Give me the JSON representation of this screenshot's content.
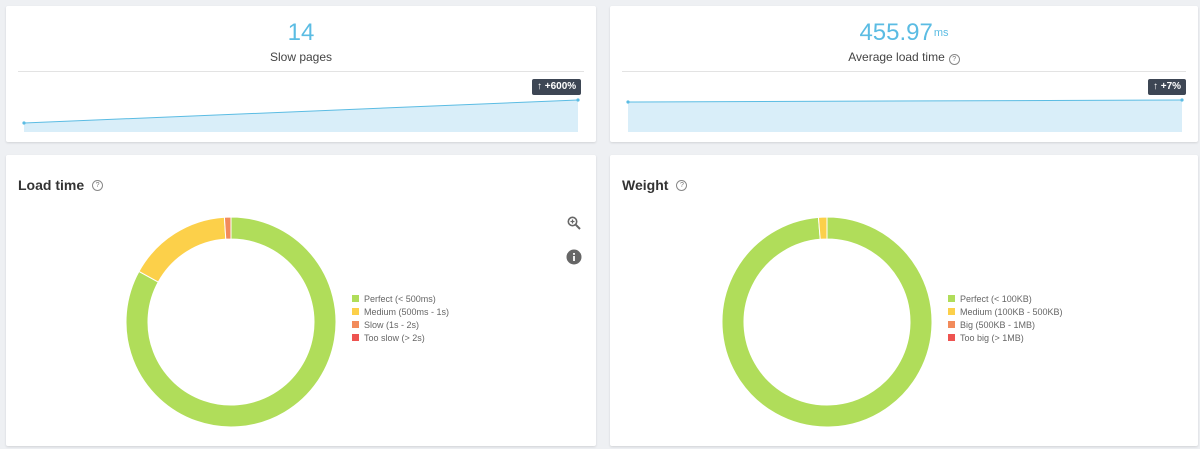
{
  "kpis": {
    "slow_pages": {
      "value": "14",
      "label": "Slow pages",
      "trend": "↑ +600%"
    },
    "avg_load": {
      "value": "455.97",
      "unit": "ms",
      "label": "Average load time",
      "trend": "↑ +7%"
    }
  },
  "charts": {
    "load_time": {
      "title": "Load time",
      "legend": [
        "Perfect (< 500ms)",
        "Medium (500ms - 1s)",
        "Slow (1s - 2s)",
        "Too slow (> 2s)"
      ]
    },
    "weight": {
      "title": "Weight",
      "legend": [
        "Perfect (< 100KB)",
        "Medium (100KB - 500KB)",
        "Big (500KB - 1MB)",
        "Too big (> 1MB)"
      ]
    }
  },
  "colors": {
    "perfect": "#b0dd5a",
    "medium": "#fcd04a",
    "slow": "#f28b5b",
    "too_slow": "#ee5350",
    "accent": "#5bbce3",
    "spark_fill": "#d9eef9"
  },
  "chart_data": [
    {
      "type": "pie",
      "title": "Load time",
      "categories": [
        "Perfect (< 500ms)",
        "Medium (500ms - 1s)",
        "Slow (1s - 2s)",
        "Too slow (> 2s)"
      ],
      "values": [
        83,
        16,
        1,
        0
      ]
    },
    {
      "type": "pie",
      "title": "Weight",
      "categories": [
        "Perfect (< 100KB)",
        "Medium (100KB - 500KB)",
        "Big (500KB - 1MB)",
        "Too big (> 1MB)"
      ],
      "values": [
        98.7,
        1.3,
        0,
        0
      ]
    }
  ]
}
